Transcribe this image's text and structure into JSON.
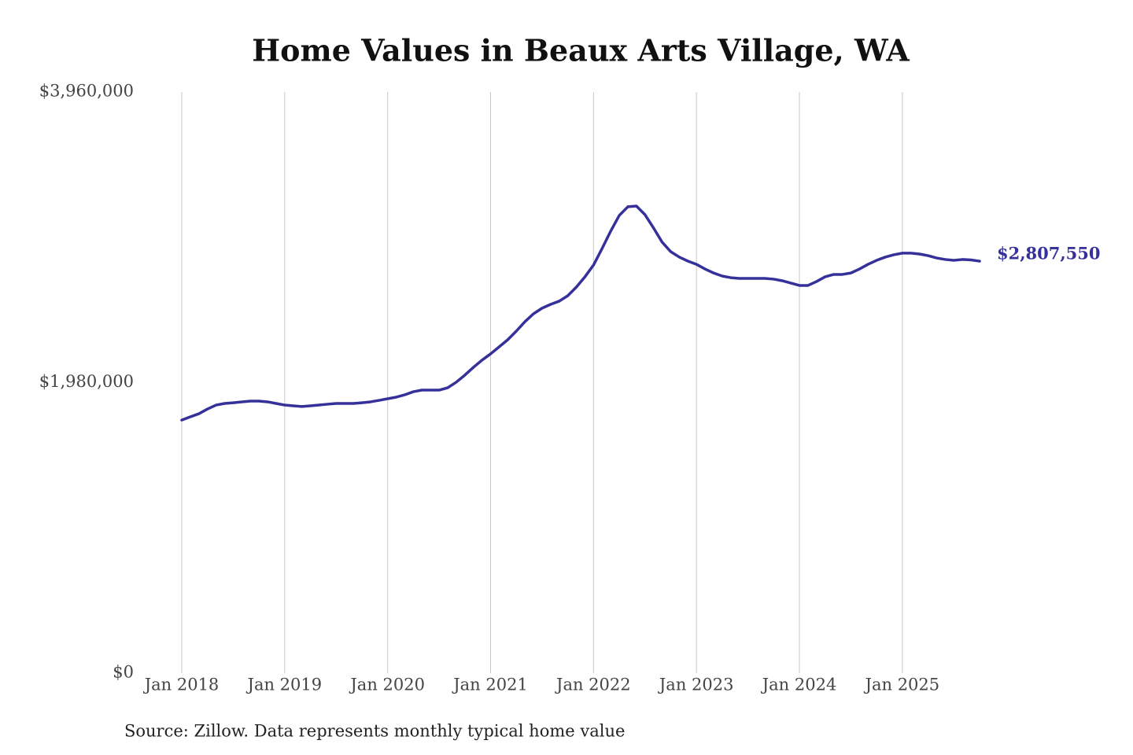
{
  "chart_data": {
    "type": "line",
    "title": "Home Values in Beaux Arts Village, WA",
    "source": "Source: Zillow. Data represents monthly typical home value",
    "color": "#35309a",
    "x": [
      "2018-01",
      "2018-02",
      "2018-03",
      "2018-04",
      "2018-05",
      "2018-06",
      "2018-07",
      "2018-08",
      "2018-09",
      "2018-10",
      "2018-11",
      "2018-12",
      "2019-01",
      "2019-02",
      "2019-03",
      "2019-04",
      "2019-05",
      "2019-06",
      "2019-07",
      "2019-08",
      "2019-09",
      "2019-10",
      "2019-11",
      "2019-12",
      "2020-01",
      "2020-02",
      "2020-03",
      "2020-04",
      "2020-05",
      "2020-06",
      "2020-07",
      "2020-08",
      "2020-09",
      "2020-10",
      "2020-11",
      "2020-12",
      "2021-01",
      "2021-02",
      "2021-03",
      "2021-04",
      "2021-05",
      "2021-06",
      "2021-07",
      "2021-08",
      "2021-09",
      "2021-10",
      "2021-11",
      "2021-12",
      "2022-01",
      "2022-02",
      "2022-03",
      "2022-04",
      "2022-05",
      "2022-06",
      "2022-07",
      "2022-08",
      "2022-09",
      "2022-10",
      "2022-11",
      "2022-12",
      "2023-01",
      "2023-02",
      "2023-03",
      "2023-04",
      "2023-05",
      "2023-06",
      "2023-07",
      "2023-08",
      "2023-09",
      "2023-10",
      "2023-11",
      "2023-12",
      "2024-01",
      "2024-02",
      "2024-03",
      "2024-04",
      "2024-05",
      "2024-06",
      "2024-07",
      "2024-08",
      "2024-09",
      "2024-10",
      "2024-11",
      "2024-12",
      "2025-01",
      "2025-02",
      "2025-03",
      "2025-04",
      "2025-05",
      "2025-06",
      "2025-07",
      "2025-08",
      "2025-09",
      "2025-10"
    ],
    "values": [
      1725000,
      1747000,
      1768000,
      1800000,
      1827000,
      1838000,
      1843000,
      1849000,
      1854000,
      1854000,
      1849000,
      1838000,
      1827000,
      1822000,
      1817000,
      1822000,
      1827000,
      1833000,
      1838000,
      1838000,
      1838000,
      1843000,
      1849000,
      1859000,
      1870000,
      1881000,
      1897000,
      1918000,
      1929000,
      1929000,
      1929000,
      1945000,
      1983000,
      2031000,
      2084000,
      2133000,
      2176000,
      2224000,
      2272000,
      2331000,
      2395000,
      2449000,
      2487000,
      2513000,
      2535000,
      2572000,
      2631000,
      2701000,
      2781000,
      2894000,
      3012000,
      3119000,
      3178000,
      3183000,
      3124000,
      3033000,
      2937000,
      2872000,
      2835000,
      2808000,
      2786000,
      2754000,
      2727000,
      2706000,
      2695000,
      2690000,
      2690000,
      2690000,
      2690000,
      2685000,
      2674000,
      2658000,
      2642000,
      2642000,
      2669000,
      2701000,
      2717000,
      2717000,
      2727000,
      2754000,
      2786000,
      2813000,
      2835000,
      2851000,
      2862000,
      2862000,
      2856000,
      2845000,
      2829000,
      2819000,
      2813000,
      2819000,
      2816000,
      2807550
    ],
    "value_labels": [
      null,
      null,
      null,
      null,
      null,
      null,
      null,
      null,
      null,
      null,
      null,
      null,
      null,
      null,
      null,
      null,
      null,
      null,
      null,
      null,
      null,
      null,
      null,
      null,
      null,
      null,
      null,
      null,
      null,
      null,
      null,
      null,
      null,
      null,
      null,
      null,
      null,
      null,
      null,
      null,
      null,
      null,
      null,
      null,
      null,
      null,
      null,
      null,
      null,
      null,
      null,
      null,
      null,
      null,
      null,
      null,
      null,
      null,
      null,
      null,
      null,
      null,
      null,
      null,
      null,
      null,
      null,
      null,
      null,
      null,
      null,
      null,
      null,
      null,
      null,
      null,
      null,
      null,
      null,
      null,
      null,
      null,
      null,
      null,
      null,
      null,
      null,
      null,
      null,
      null,
      null,
      null,
      null,
      "$2,807,550"
    ],
    "xlim": [
      "2018-01",
      "2025-10"
    ],
    "xticks": [
      {
        "value": "2018-01",
        "label": "Jan 2018"
      },
      {
        "value": "2019-01",
        "label": "Jan 2019"
      },
      {
        "value": "2020-01",
        "label": "Jan 2020"
      },
      {
        "value": "2021-01",
        "label": "Jan 2021"
      },
      {
        "value": "2022-01",
        "label": "Jan 2022"
      },
      {
        "value": "2023-01",
        "label": "Jan 2023"
      },
      {
        "value": "2024-01",
        "label": "Jan 2024"
      },
      {
        "value": "2025-01",
        "label": "Jan 2025"
      }
    ],
    "ylim": [
      0,
      3960000
    ],
    "yticks": [
      {
        "value": 0,
        "label": "$0"
      },
      {
        "value": 1980000,
        "label": "$1,980,000"
      },
      {
        "value": 3960000,
        "label": "$3,960,000"
      }
    ],
    "grid": true
  }
}
